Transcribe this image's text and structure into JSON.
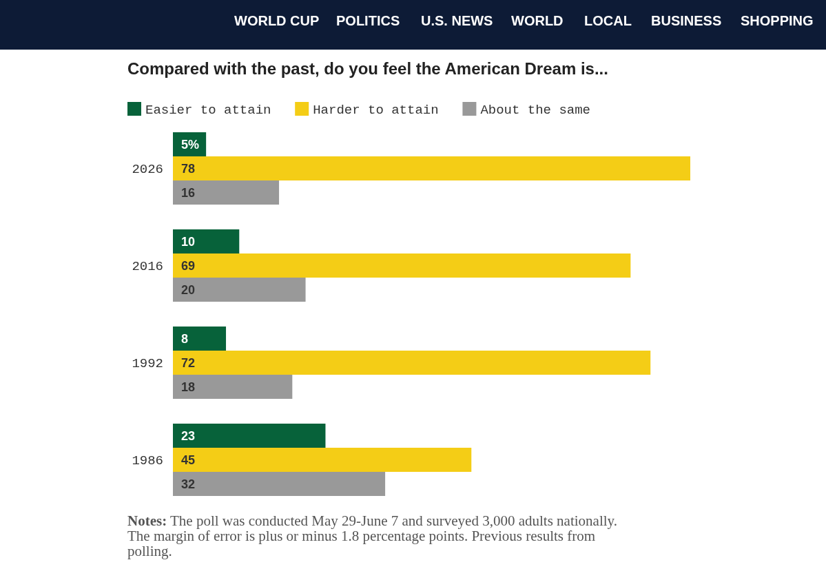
{
  "chart_data": {
    "type": "bar",
    "orientation": "horizontal",
    "title": "Compared with the past, do you feel the American Dream is...",
    "categories": [
      "2026",
      "2016",
      "1992",
      "1986"
    ],
    "series": [
      {
        "name": "Easier to attain",
        "color": "#07623a",
        "values": [
          5,
          10,
          8,
          23
        ],
        "value_labels": [
          "5%",
          "10",
          "8",
          "23"
        ]
      },
      {
        "name": "Harder to attain",
        "color": "#f4cd16",
        "values": [
          78,
          69,
          72,
          45
        ],
        "value_labels": [
          "78",
          "69",
          "72",
          "45"
        ]
      },
      {
        "name": "About the same",
        "color": "#999999",
        "values": [
          16,
          20,
          18,
          32
        ],
        "value_labels": [
          "16",
          "20",
          "18",
          "32"
        ]
      }
    ],
    "legend": "top left",
    "annotations": [
      "WORLD CUP",
      "POLITICS",
      "U.S. NEWS",
      "WORLD",
      "LOCAL",
      "BUSINESS",
      "SHOPPING",
      "Notes: The poll was conducted May 29-June 7 and surveyed 3,000 adults nationally. The margin of error is plus or minus 1.8 percentage points. Previous results from polling."
    ]
  }
}
